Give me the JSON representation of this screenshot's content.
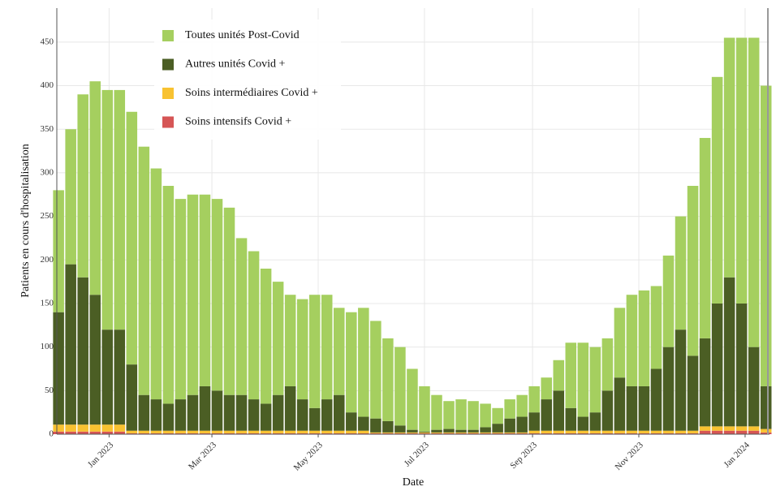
{
  "chart_data": {
    "type": "stacked-bar",
    "xlabel": "Date",
    "ylabel": "Patients en cours d'hospitalisation",
    "x": [
      "2022-12-03",
      "2022-12-10",
      "2022-12-17",
      "2022-12-24",
      "2022-12-31",
      "2023-01-07",
      "2023-01-14",
      "2023-01-21",
      "2023-01-28",
      "2023-02-04",
      "2023-02-11",
      "2023-02-18",
      "2023-02-25",
      "2023-03-04",
      "2023-03-11",
      "2023-03-18",
      "2023-03-25",
      "2023-04-01",
      "2023-04-08",
      "2023-04-15",
      "2023-04-22",
      "2023-04-29",
      "2023-05-06",
      "2023-05-13",
      "2023-05-20",
      "2023-05-27",
      "2023-06-03",
      "2023-06-10",
      "2023-06-17",
      "2023-06-24",
      "2023-07-01",
      "2023-07-08",
      "2023-07-15",
      "2023-07-22",
      "2023-07-29",
      "2023-08-05",
      "2023-08-12",
      "2023-08-19",
      "2023-08-26",
      "2023-09-02",
      "2023-09-09",
      "2023-09-16",
      "2023-09-23",
      "2023-09-30",
      "2023-10-07",
      "2023-10-14",
      "2023-10-21",
      "2023-10-28",
      "2023-11-04",
      "2023-11-11",
      "2023-11-18",
      "2023-11-25",
      "2023-12-02",
      "2023-12-09",
      "2023-12-16",
      "2023-12-23",
      "2023-12-30",
      "2024-01-06",
      "2024-01-13"
    ],
    "series": [
      {
        "name": "Toutes unités Post-Covid",
        "color": "#a5cf5f",
        "values": [
          140,
          155,
          210,
          245,
          275,
          275,
          290,
          285,
          265,
          250,
          230,
          230,
          220,
          220,
          215,
          180,
          170,
          155,
          130,
          105,
          115,
          130,
          120,
          100,
          115,
          125,
          112,
          95,
          90,
          70,
          52,
          40,
          32,
          35,
          33,
          27,
          18,
          22,
          25,
          30,
          25,
          35,
          75,
          85,
          75,
          60,
          80,
          105,
          110,
          95,
          105,
          130,
          195,
          230,
          260,
          275,
          305,
          355,
          345
        ]
      },
      {
        "name": "Autres unités Covid +",
        "color": "#4b5e24",
        "values": [
          129,
          184,
          169,
          149,
          109,
          109,
          76,
          41,
          36,
          31,
          36,
          41,
          51,
          46,
          41,
          41,
          36,
          31,
          41,
          51,
          36,
          26,
          36,
          41,
          21,
          16,
          16,
          13,
          8,
          3,
          1,
          3,
          4,
          3,
          3,
          6,
          10,
          16,
          18,
          21,
          36,
          46,
          26,
          16,
          21,
          46,
          61,
          51,
          51,
          71,
          96,
          116,
          86,
          101,
          141,
          171,
          141,
          91,
          49
        ]
      },
      {
        "name": "Soins intermédiaires Covid +",
        "color": "#f8c231",
        "values": [
          8,
          8,
          8,
          8,
          8,
          8,
          3,
          3,
          3,
          3,
          3,
          3,
          3,
          3,
          3,
          3,
          3,
          3,
          3,
          3,
          3,
          3,
          3,
          3,
          3,
          3,
          1,
          1,
          1,
          1,
          1,
          1,
          1,
          1,
          1,
          1,
          1,
          1,
          1,
          3,
          3,
          3,
          3,
          3,
          3,
          3,
          3,
          3,
          3,
          3,
          3,
          3,
          3,
          5,
          5,
          5,
          5,
          5,
          4
        ]
      },
      {
        "name": "Soins intensifs Covid +",
        "color": "#d65555",
        "values": [
          3,
          3,
          3,
          3,
          3,
          3,
          1,
          1,
          1,
          1,
          1,
          1,
          1,
          1,
          1,
          1,
          1,
          1,
          1,
          1,
          1,
          1,
          1,
          1,
          1,
          1,
          1,
          1,
          1,
          1,
          1,
          1,
          1,
          1,
          1,
          1,
          1,
          1,
          1,
          1,
          1,
          1,
          1,
          1,
          1,
          1,
          1,
          1,
          1,
          1,
          1,
          1,
          1,
          4,
          4,
          4,
          4,
          4,
          2
        ]
      }
    ],
    "xlim": [
      "2022-12-02",
      "2024-01-15"
    ],
    "xticks": [
      {
        "value": "2023-01-01",
        "label": "Jan 2023"
      },
      {
        "value": "2023-03-01",
        "label": "Mar 2023"
      },
      {
        "value": "2023-05-01",
        "label": "May 2023"
      },
      {
        "value": "2023-07-01",
        "label": "Jul 2023"
      },
      {
        "value": "2023-09-01",
        "label": "Sep 2023"
      },
      {
        "value": "2023-11-01",
        "label": "Nov 2023"
      },
      {
        "value": "2024-01-01",
        "label": "Jan 2024"
      }
    ],
    "ylim": [
      0,
      489
    ],
    "yticks": [
      0,
      50,
      100,
      150,
      200,
      250,
      300,
      350,
      400,
      450
    ],
    "grid": true,
    "legend": "upper-left"
  }
}
